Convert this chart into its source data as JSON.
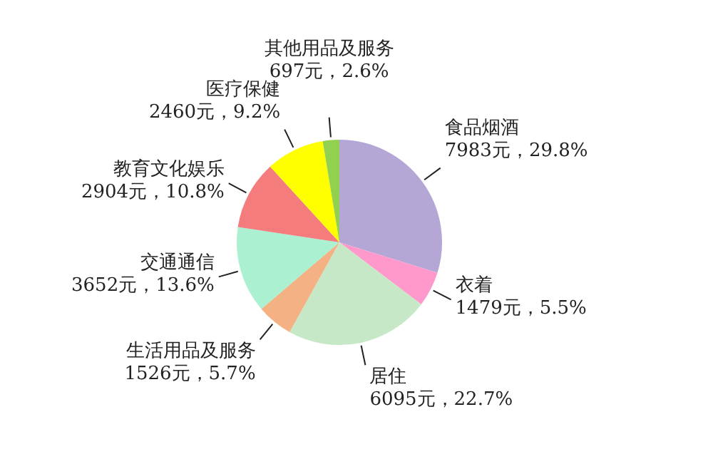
{
  "chart_data": {
    "type": "pie",
    "categories": [
      "食品烟酒",
      "衣着",
      "居住",
      "生活用品及服务",
      "交通通信",
      "教育文化娱乐",
      "医疗保健",
      "其他用品及服务"
    ],
    "values": [
      7983,
      1479,
      6095,
      1526,
      3652,
      2904,
      2460,
      697
    ],
    "colors": [
      "#b4a7d6",
      "#ff99cc",
      "#c6e8c6",
      "#f4b183",
      "#aaf0d1",
      "#f47c7c",
      "#ffff00",
      "#92d050"
    ],
    "value_labels": [
      "7983元，29.8%",
      "1479元，5.5%",
      "6095元，22.7%",
      "1526元，5.7%",
      "3652元，13.6%",
      "2904元，10.8%",
      "2460元，9.2%",
      "697元，2.6%"
    ]
  }
}
